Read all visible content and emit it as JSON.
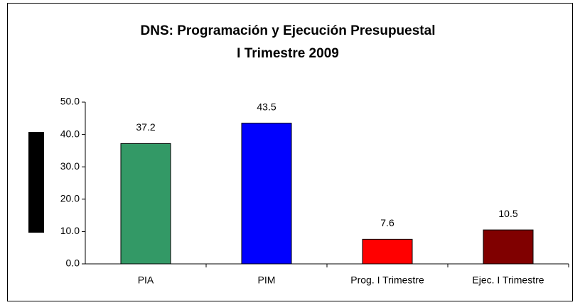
{
  "chart_data": {
    "type": "bar",
    "title": [
      "DNS: Programación y Ejecución Presupuestal",
      "I Trimestre 2009"
    ],
    "categories": [
      "PIA",
      "PIM",
      "Prog. I Trimestre",
      "Ejec. I Trimestre"
    ],
    "values": [
      37.2,
      43.5,
      7.6,
      10.5
    ],
    "colors": [
      "#339966",
      "#0000ff",
      "#ff0000",
      "#800000"
    ],
    "ylim": [
      0,
      50
    ],
    "yticks": [
      {
        "value": 0,
        "label": "0.0"
      },
      {
        "value": 10,
        "label": "10.0"
      },
      {
        "value": 20,
        "label": "20.0"
      },
      {
        "value": 30,
        "label": "30.0"
      },
      {
        "value": 40,
        "label": "40.0"
      },
      {
        "value": 50,
        "label": "50.0"
      }
    ],
    "grid": false
  }
}
